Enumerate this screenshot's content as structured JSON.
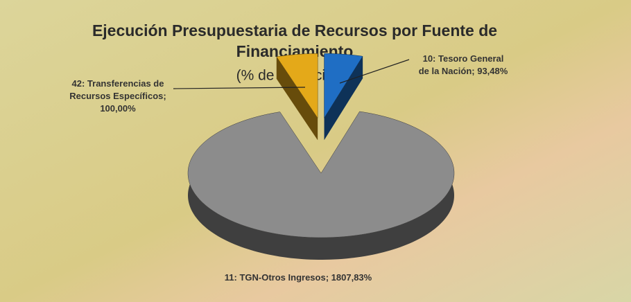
{
  "chart_data": {
    "type": "pie3d",
    "title": "Ejecución Presupuestaria de Recursos por Fuente de Financiamiento",
    "subtitle": "(% de Ejecución)",
    "categories": [
      "10: Tesoro General de la Nación;",
      "11: TGN-Otros Ingresos;",
      "42: Transferencias de Recursos Específicos;"
    ],
    "values": [
      93.48,
      1807.83,
      100.0
    ],
    "value_labels": [
      "93,48%",
      "1807,83%",
      "100,00%"
    ],
    "colors": [
      "#1f6ec4",
      "#8c8c8c",
      "#e4a919"
    ]
  }
}
